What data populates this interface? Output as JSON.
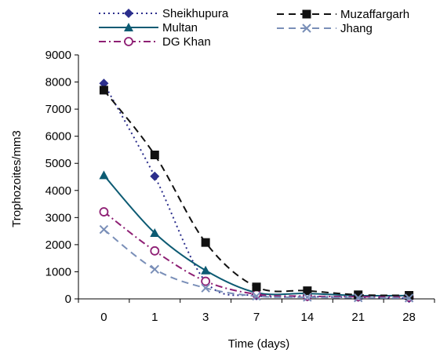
{
  "chart_data": {
    "type": "line",
    "xlabel": "Time (days)",
    "ylabel": "Trophozoites/mm3",
    "categories": [
      "0",
      "1",
      "3",
      "7",
      "14",
      "21",
      "28"
    ],
    "y_ticks": [
      0,
      1000,
      2000,
      3000,
      4000,
      5000,
      6000,
      7000,
      8000,
      9000
    ],
    "ylim": [
      0,
      9000
    ],
    "grid": false,
    "legend_position": "top",
    "series": [
      {
        "name": "Sheikhupura",
        "values": [
          7950,
          4520,
          640,
          120,
          80,
          60,
          20
        ],
        "color": "#2b2e8c",
        "dash": "dot",
        "marker": "diamond"
      },
      {
        "name": "Multan",
        "values": [
          4560,
          2430,
          1050,
          230,
          200,
          120,
          120
        ],
        "color": "#0d5b73",
        "dash": "solid",
        "marker": "triangle"
      },
      {
        "name": "DG Khan",
        "values": [
          3210,
          1770,
          650,
          170,
          100,
          80,
          60
        ],
        "color": "#8e1f74",
        "dash": "dashdot",
        "marker": "open-circle"
      },
      {
        "name": "Muzaffargarh",
        "values": [
          7700,
          5310,
          2080,
          440,
          300,
          150,
          130
        ],
        "color": "#111111",
        "dash": "dash",
        "marker": "square"
      },
      {
        "name": "Jhang",
        "values": [
          2560,
          1090,
          400,
          100,
          60,
          40,
          30
        ],
        "color": "#7a8fb8",
        "dash": "dash",
        "marker": "x"
      }
    ]
  }
}
